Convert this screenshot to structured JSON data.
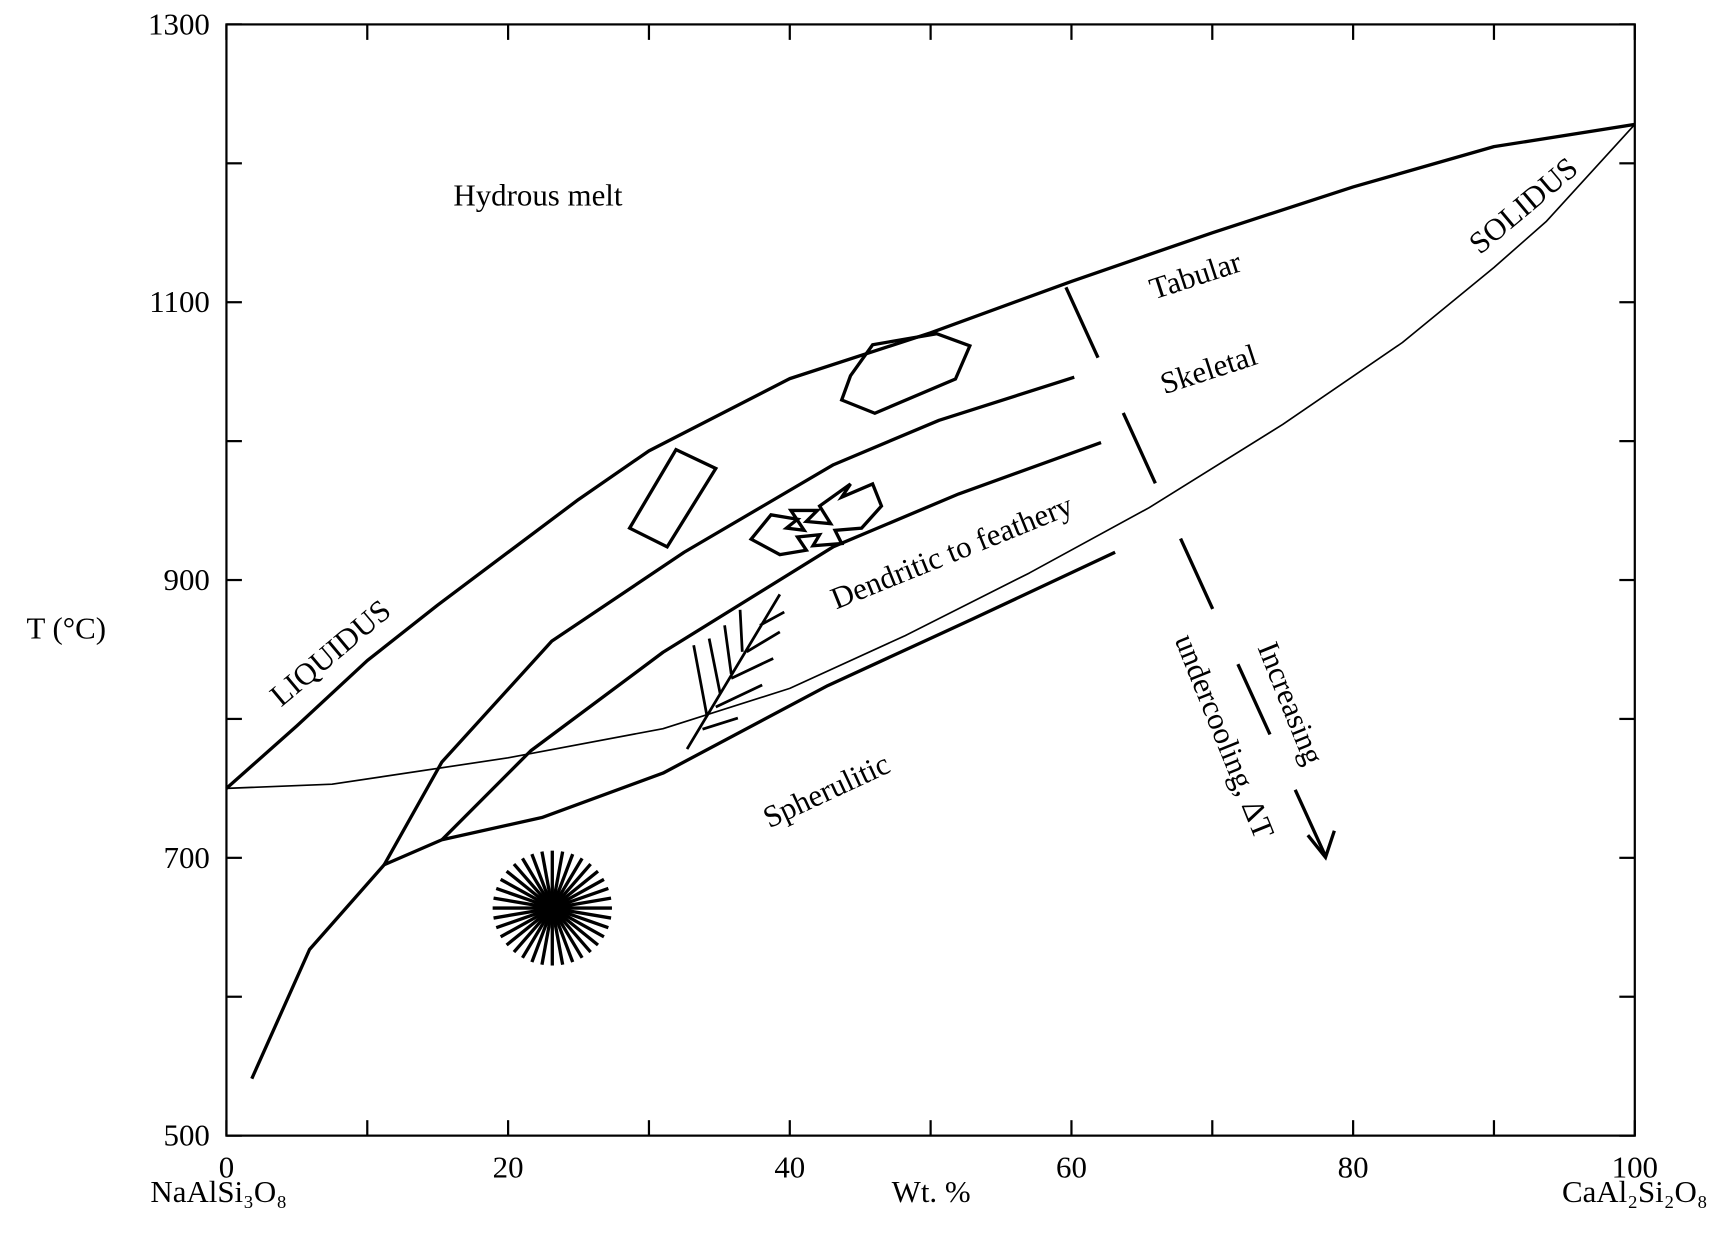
{
  "chart_data": {
    "type": "line",
    "y_label": "T (°C)",
    "x_label": "Wt. %",
    "x_left_label": "NaAlSi₃O₈",
    "x_right_label": "CaAl₂Si₂O₈",
    "xlim": [
      0,
      100
    ],
    "xticks": [
      0,
      20,
      40,
      60,
      80,
      100
    ],
    "xminor_ticks": [
      10,
      30,
      50,
      70,
      90
    ],
    "ylim": [
      500,
      1300
    ],
    "yticks": [
      500,
      700,
      900,
      1100,
      1300
    ],
    "yminor_ticks": [
      600,
      800,
      1000,
      1200
    ],
    "annotations": {
      "melt": "Hydrous melt",
      "tabular": "Tabular",
      "skeletal": "Skeletal",
      "dendritic": "Dendritic to feathery",
      "spherulitic": "Spherulitic",
      "increasing": "Increasing",
      "undercooling": "undercooling, ΔT"
    },
    "series": [
      {
        "name": "LIQUIDUS",
        "color": "#000000",
        "line_width": 3,
        "x": [
          0,
          5,
          10,
          15,
          20,
          25,
          30,
          40,
          50,
          60,
          70,
          80,
          90,
          100
        ],
        "values": [
          750,
          795,
          842,
          882,
          920,
          958,
          993,
          1045,
          1078,
          1115,
          1150,
          1183,
          1212,
          1228
        ]
      },
      {
        "name": "SOLIDUS",
        "color": "#000000",
        "line_width": 1.5,
        "x": [
          0,
          7.5,
          20,
          31,
          40,
          48.2,
          57,
          65.5,
          75,
          83.5,
          90,
          93.7,
          100
        ],
        "values": [
          750,
          753,
          772,
          793,
          822,
          860,
          905,
          952,
          1012,
          1071,
          1125,
          1158,
          1228
        ]
      },
      {
        "color": "#000000",
        "line_width": 3,
        "x": [
          11.2,
          15.3,
          23.1,
          32.5,
          43.1,
          50.6,
          60.2
        ],
        "values": [
          695,
          769,
          856,
          920,
          983,
          1015,
          1046
        ]
      },
      {
        "color": "#000000",
        "line_width": 3,
        "x": [
          15.3,
          21.6,
          31,
          43.1,
          52,
          62.1
        ],
        "values": [
          713,
          777,
          848,
          924,
          962,
          999
        ]
      },
      {
        "color": "#000000",
        "line_width": 3,
        "x": [
          1.8,
          5.9,
          11.2,
          15.3,
          22.4,
          31,
          42.7,
          53,
          63.1
        ],
        "values": [
          541,
          634,
          695,
          713,
          729,
          761,
          824,
          872,
          920
        ]
      }
    ]
  }
}
